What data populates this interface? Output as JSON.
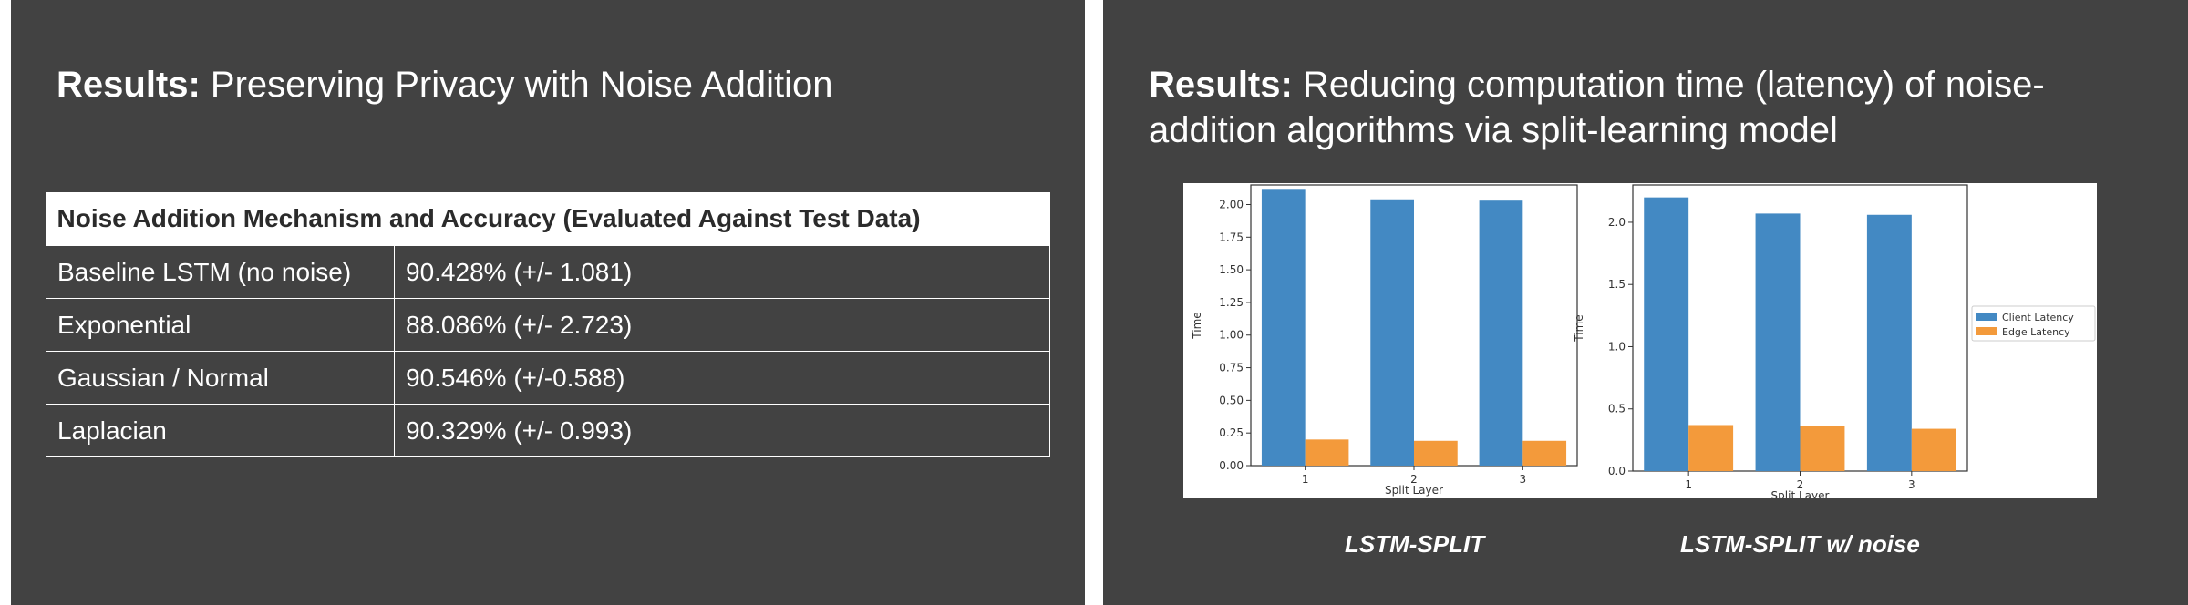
{
  "left_slide": {
    "title_bold": "Results:",
    "title_rest": " Preserving Privacy with Noise Addition",
    "table": {
      "header": "Noise Addition Mechanism and Accuracy (Evaluated Against Test Data)",
      "rows": [
        {
          "mechanism": "Baseline LSTM (no noise)",
          "accuracy": "90.428% (+/- 1.081)"
        },
        {
          "mechanism": "Exponential",
          "accuracy": "88.086% (+/- 2.723)"
        },
        {
          "mechanism": "Gaussian / Normal",
          "accuracy": "90.546% (+/-0.588)"
        },
        {
          "mechanism": "Laplacian",
          "accuracy": "90.329% (+/- 0.993)"
        }
      ]
    }
  },
  "right_slide": {
    "title_bold": "Results:",
    "title_rest": " Reducing computation time (latency) of noise-addition algorithms via split-learning model",
    "captions": [
      "LSTM-SPLIT",
      "LSTM-SPLIT w/ noise"
    ]
  },
  "chart_data": [
    {
      "type": "bar",
      "title": "",
      "xlabel": "Split Layer",
      "ylabel": "Time",
      "categories": [
        "1",
        "2",
        "3"
      ],
      "ylim": [
        0,
        2.15
      ],
      "yticks": [
        "0.00",
        "0.25",
        "0.50",
        "0.75",
        "1.00",
        "1.25",
        "1.50",
        "1.75",
        "2.00"
      ],
      "series": [
        {
          "name": "Client Latency",
          "color": "#4389c3",
          "values": [
            2.12,
            2.04,
            2.03
          ]
        },
        {
          "name": "Edge Latency",
          "color": "#f39a3b",
          "values": [
            0.2,
            0.19,
            0.19
          ]
        }
      ],
      "grid": false,
      "legend": "none"
    },
    {
      "type": "bar",
      "title": "",
      "xlabel": "Split Layer",
      "ylabel": "Time",
      "categories": [
        "1",
        "2",
        "3"
      ],
      "ylim": [
        0,
        2.3
      ],
      "yticks": [
        "0.0",
        "0.5",
        "1.0",
        "1.5",
        "2.0"
      ],
      "series": [
        {
          "name": "Client Latency",
          "color": "#4389c3",
          "values": [
            2.2,
            2.07,
            2.06
          ]
        },
        {
          "name": "Edge Latency",
          "color": "#f39a3b",
          "values": [
            0.37,
            0.36,
            0.34
          ]
        }
      ],
      "grid": false,
      "legend": "right"
    }
  ]
}
